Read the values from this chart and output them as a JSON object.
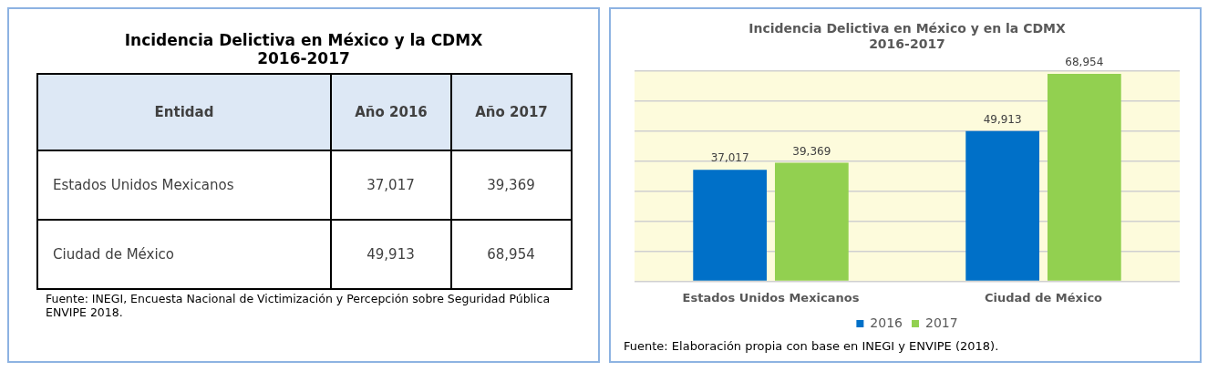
{
  "chart_data": [
    {
      "type": "other",
      "title": "Incidencia Delictiva en México y la CDMX\n2016-2017",
      "annotations": [
        "Entidad",
        "Año 2016",
        "Año 2017",
        "Estados Unidos Mexicanos",
        "37,017",
        "39,369",
        "Ciudad de México",
        "49,913",
        "68,954",
        "Fuente: INEGI, Encuesta Nacional de Victimización y Percepción sobre Seguridad Pública ENVIPE 2018."
      ]
    },
    {
      "type": "bar",
      "title": "Incidencia Delictiva en México y en la CDMX\n2016-2017",
      "categories": [
        "Estados Unidos Mexicanos",
        "Ciudad de México"
      ],
      "series": [
        {
          "name": "2016",
          "color": "#0070c8",
          "values": [
            37017,
            49913
          ],
          "value_labels": [
            "37,017",
            "49,913"
          ]
        },
        {
          "name": "2017",
          "color": "#92d050",
          "values": [
            39369,
            68954
          ],
          "value_labels": [
            "39,369",
            "68,954"
          ]
        }
      ],
      "tick_labels": "x",
      "grid": "y",
      "legend": "bottom",
      "annotations": [
        "Fuente: Elaboración propia con base en INEGI y ENVIPE (2018)."
      ]
    }
  ]
}
